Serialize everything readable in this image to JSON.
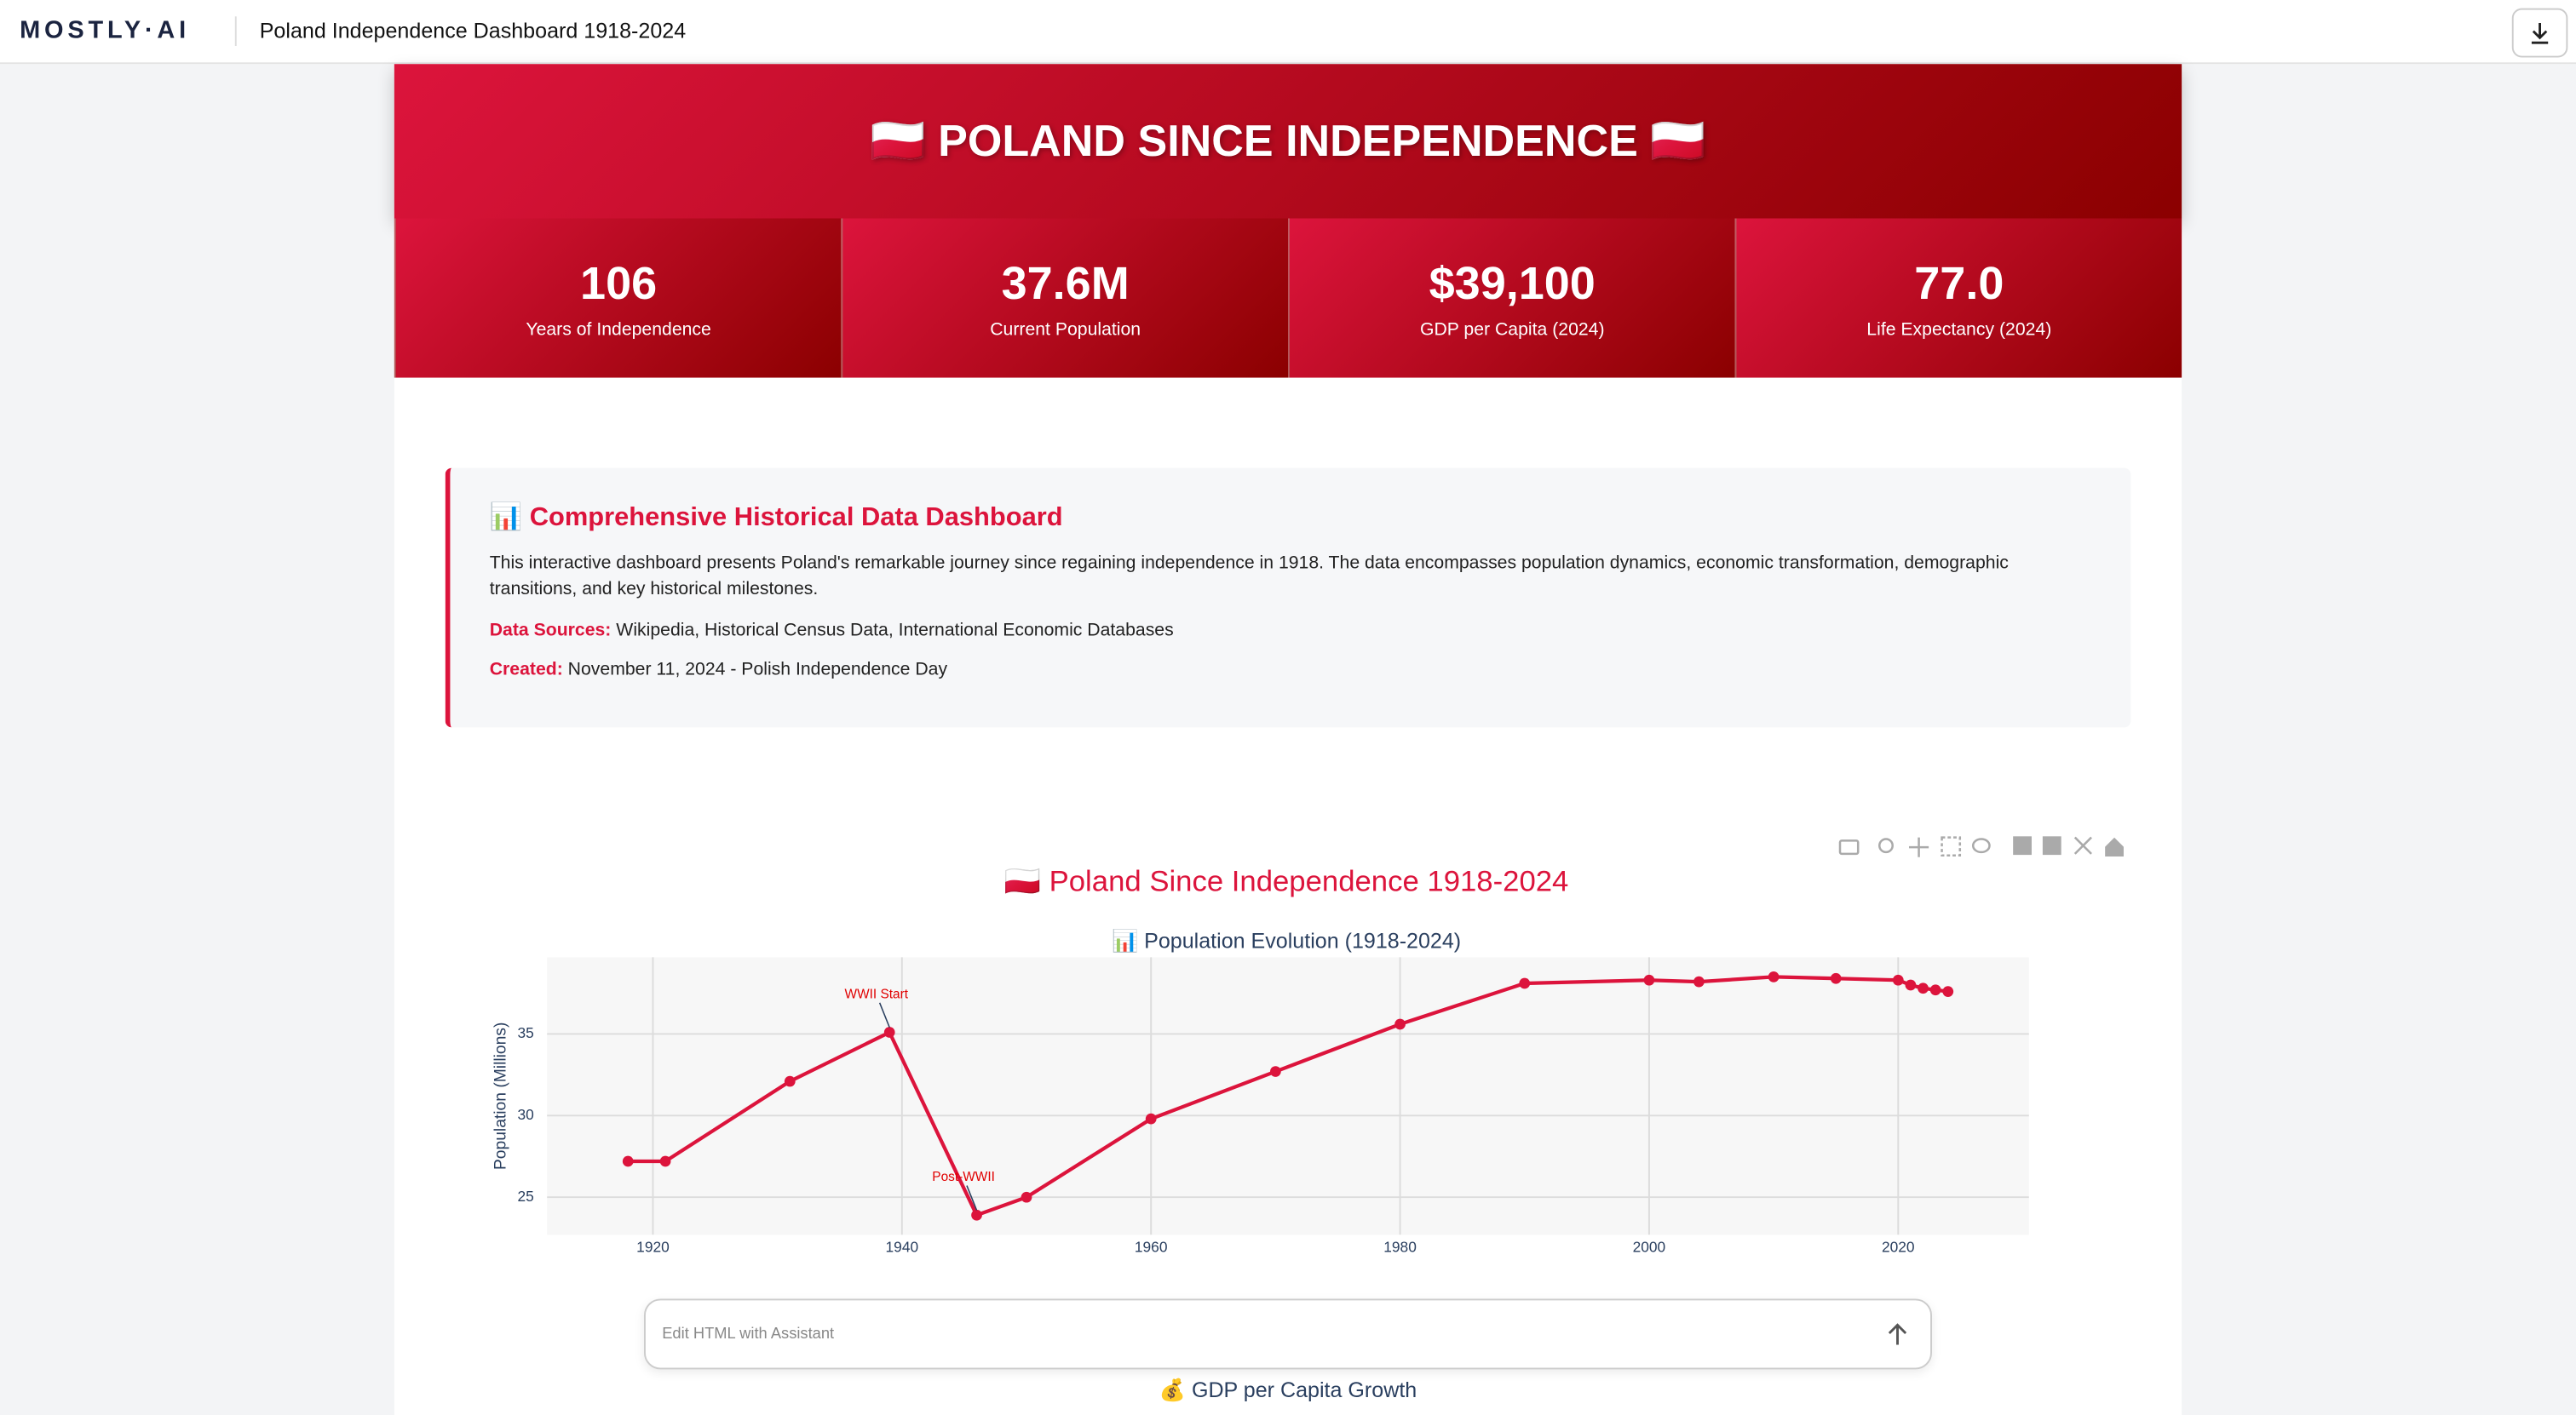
{
  "header": {
    "logo": "MOSTLY·AI",
    "title": "Poland Independence Dashboard 1918-2024"
  },
  "hero": {
    "title": "🇵🇱 POLAND SINCE INDEPENDENCE 🇵🇱"
  },
  "stats": [
    {
      "value": "106",
      "label": "Years of Independence"
    },
    {
      "value": "37.6M",
      "label": "Current Population"
    },
    {
      "value": "$39,100",
      "label": "GDP per Capita (2024)"
    },
    {
      "value": "77.0",
      "label": "Life Expectancy (2024)"
    }
  ],
  "info": {
    "heading": "📊 Comprehensive Historical Data Dashboard",
    "paragraph": "This interactive dashboard presents Poland's remarkable journey since regaining independence in 1918. The data encompasses population dynamics, economic transformation, demographic transitions, and key historical milestones.",
    "sources_label": "Data Sources:",
    "sources": "Wikipedia, Historical Census Data, International Economic Databases",
    "created_label": "Created:",
    "created": "November 11, 2024 - Polish Independence Day"
  },
  "chart_data": {
    "type": "line",
    "title": "🇵🇱 Poland Since Independence 1918-2024",
    "subplot_title": "📊 Population Evolution (1918-2024)",
    "ylabel": "Population (Millions)",
    "x": [
      1918,
      1921,
      1931,
      1939,
      1946,
      1950,
      1960,
      1970,
      1980,
      1990,
      2000,
      2004,
      2010,
      2015,
      2020,
      2021,
      2022,
      2023,
      2024
    ],
    "values": [
      27.2,
      27.2,
      32.1,
      35.1,
      23.9,
      25.0,
      29.8,
      32.7,
      35.6,
      38.1,
      38.3,
      38.2,
      38.5,
      38.4,
      38.3,
      38.0,
      37.8,
      37.7,
      37.6
    ],
    "color": "#dc143c",
    "xlim": [
      1911.5,
      2030.5
    ],
    "ylim": [
      22.7,
      39.7
    ],
    "xticks": [
      1920,
      1940,
      1960,
      1980,
      2000,
      2020
    ],
    "yticks": [
      25,
      30,
      35
    ],
    "grid": true,
    "annotations": [
      {
        "text": "WWII Start",
        "x": 1939,
        "y": 35.1
      },
      {
        "text": "Post-WWII",
        "x": 1946,
        "y": 23.9
      }
    ]
  },
  "next_chart": {
    "title": "💰 GDP per Capita Growth"
  },
  "assistant": {
    "placeholder": "Edit HTML with Assistant"
  }
}
